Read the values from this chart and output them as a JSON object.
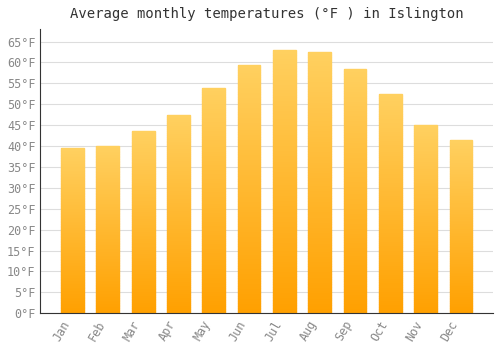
{
  "title": "Average monthly temperatures (°F ) in Islington",
  "months": [
    "Jan",
    "Feb",
    "Mar",
    "Apr",
    "May",
    "Jun",
    "Jul",
    "Aug",
    "Sep",
    "Oct",
    "Nov",
    "Dec"
  ],
  "values": [
    39.5,
    40.1,
    43.7,
    47.5,
    54.0,
    59.5,
    63.0,
    62.5,
    58.5,
    52.5,
    45.0,
    41.5
  ],
  "bar_color_top": "#FFD060",
  "bar_color_bottom": "#FFA000",
  "background_color": "#FFFFFF",
  "grid_color": "#DDDDDD",
  "text_color": "#888888",
  "title_color": "#333333",
  "ylim": [
    0,
    68
  ],
  "yticks": [
    0,
    5,
    10,
    15,
    20,
    25,
    30,
    35,
    40,
    45,
    50,
    55,
    60,
    65
  ],
  "title_fontsize": 10,
  "tick_fontsize": 8.5
}
